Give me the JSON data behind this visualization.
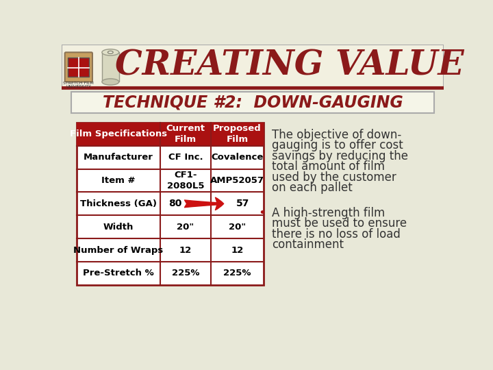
{
  "title": "CREATING VALUE",
  "title_color": "#8B1A1A",
  "subtitle": "TECHNIQUE #2:  DOWN-GAUGING",
  "subtitle_color": "#8B1A1A",
  "bg_color": "#E8E8D8",
  "header_bg": "#AA1111",
  "header_text_color": "#FFFFFF",
  "table_headers": [
    "Film Specifications",
    "Current\nFilm",
    "Proposed\nFilm"
  ],
  "table_rows": [
    [
      "Manufacturer",
      "CF Inc.",
      "Covalence"
    ],
    [
      "Item #",
      "CF1-\n2080L5",
      "AMP52057"
    ],
    [
      "Thickness (GA)",
      "80",
      "57"
    ],
    [
      "Width",
      "20\"",
      "20\""
    ],
    [
      "Number of Wraps",
      "12",
      "12"
    ],
    [
      "Pre-Stretch %",
      "225%",
      "225%"
    ]
  ],
  "arrow_row": 2,
  "bullet1_lines": [
    "The objective of down-",
    "gauging is to offer cost",
    "savings by reducing the",
    "total amount of film",
    "used by the customer",
    "on each pallet"
  ],
  "bullet2_lines": [
    "A high-strength film",
    "must be used to ensure",
    "there is no loss of load",
    "containment"
  ],
  "top_border_color": "#8B1A1A",
  "table_border_color": "#8B1A1A",
  "arrow_color": "#CC1111",
  "bullet_color": "#AA1111",
  "text_color": "#333333",
  "banner_bg": "#F0EFE0",
  "subtitle_box_bg": "#F5F5E8",
  "subtitle_box_border": "#AAAAAA"
}
